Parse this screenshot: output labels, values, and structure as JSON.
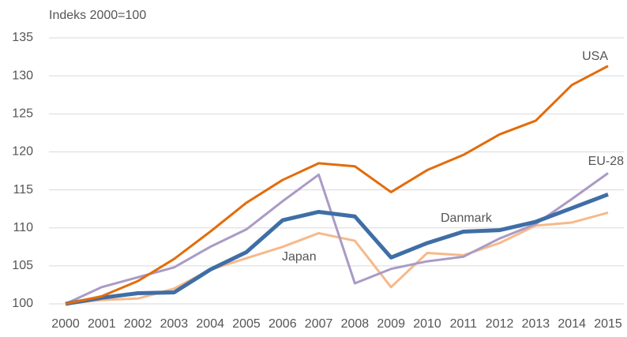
{
  "chart_data": {
    "type": "line",
    "y_axis_label": "Indeks 2000=100",
    "categories": [
      "2000",
      "2001",
      "2002",
      "2003",
      "2004",
      "2005",
      "2006",
      "2007",
      "2008",
      "2009",
      "2010",
      "2011",
      "2012",
      "2013",
      "2014",
      "2015"
    ],
    "series": [
      {
        "name": "USA",
        "color": "#e36c0a",
        "values": [
          100,
          101,
          103,
          105.9,
          109.5,
          113.3,
          116.3,
          118.5,
          118.1,
          114.7,
          117.6,
          119.6,
          122.3,
          124.1,
          128.8,
          131.3
        ]
      },
      {
        "name": "EU-28",
        "color": "#a99bc5",
        "values": [
          100,
          102.2,
          103.5,
          104.8,
          107.5,
          109.8,
          113.5,
          117,
          102.7,
          104.6,
          105.6,
          106.2,
          108.6,
          110.5,
          113.8,
          117.2
        ]
      },
      {
        "name": "Danmark",
        "color": "#3f6ea6",
        "values": [
          100,
          100.8,
          101.4,
          101.5,
          104.5,
          106.8,
          111,
          112.1,
          111.5,
          106.1,
          108,
          109.5,
          109.7,
          110.8,
          112.6,
          114.4
        ]
      },
      {
        "name": "Japan",
        "color": "#f6b98a",
        "values": [
          100,
          100.5,
          100.7,
          102,
          104.5,
          106,
          107.5,
          109.3,
          108.3,
          102.2,
          106.7,
          106.4,
          108,
          110.3,
          110.7,
          112
        ]
      }
    ],
    "ylim": [
      100,
      135
    ],
    "yticks": [
      100,
      105,
      110,
      115,
      120,
      125,
      130,
      135
    ],
    "grid": true
  }
}
